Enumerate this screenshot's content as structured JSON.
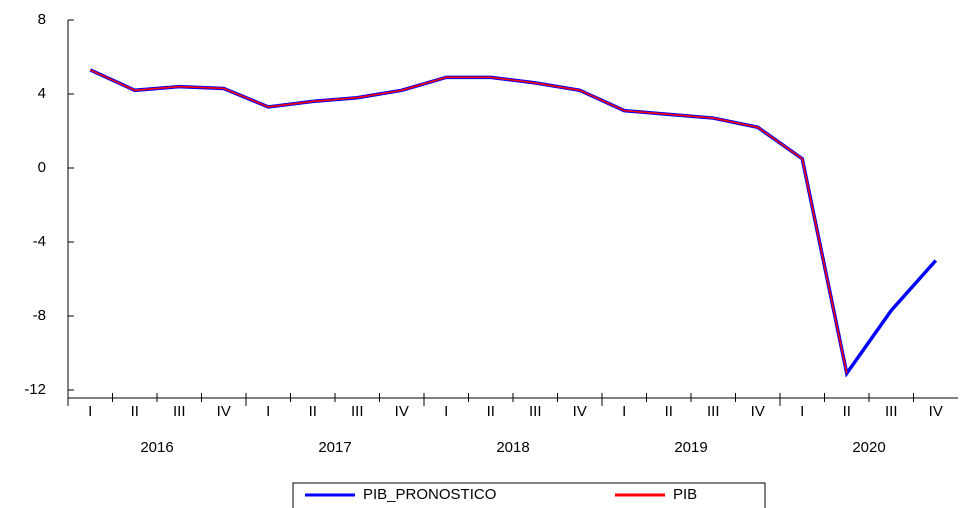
{
  "chart_data": {
    "type": "line",
    "categories": [
      "I",
      "II",
      "III",
      "IV",
      "I",
      "II",
      "III",
      "IV",
      "I",
      "II",
      "III",
      "IV",
      "I",
      "II",
      "III",
      "IV",
      "I",
      "II",
      "III",
      "IV"
    ],
    "years": [
      "2016",
      "2017",
      "2018",
      "2019",
      "2020"
    ],
    "series": [
      {
        "name": "PIB_PRONOSTICO",
        "color": "#0000ff",
        "values": [
          5.3,
          4.2,
          4.4,
          4.3,
          3.3,
          3.6,
          3.8,
          4.2,
          4.9,
          4.9,
          4.6,
          4.2,
          3.1,
          2.9,
          2.7,
          2.2,
          0.5,
          -11.1,
          -7.7,
          -5.0
        ]
      },
      {
        "name": "PIB",
        "color": "#ff0000",
        "values": [
          5.3,
          4.2,
          4.4,
          4.3,
          3.3,
          3.6,
          3.8,
          4.2,
          4.9,
          4.9,
          4.6,
          4.2,
          3.1,
          2.9,
          2.7,
          2.2,
          0.5,
          -11.1,
          null,
          null
        ]
      }
    ],
    "ylim": [
      -12,
      8
    ],
    "yticks": [
      -12,
      -8,
      -4,
      0,
      4,
      8
    ],
    "legend": "bottom"
  }
}
